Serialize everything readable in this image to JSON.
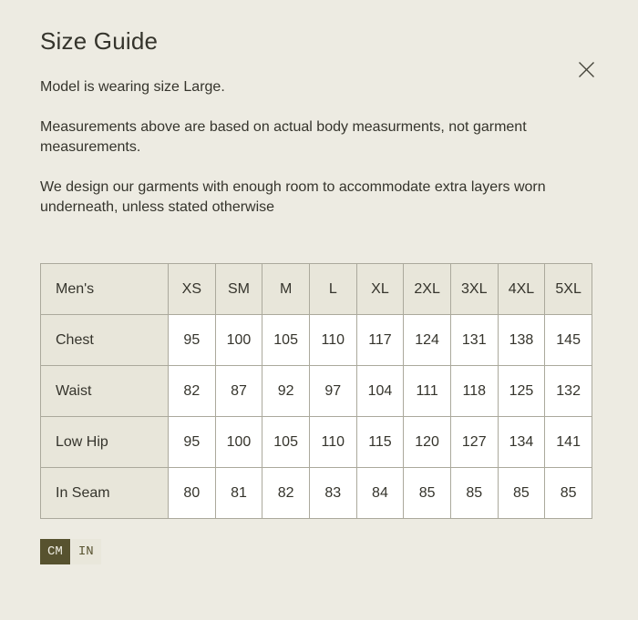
{
  "colors": {
    "page_bg": "#edebe2",
    "text": "#35342c",
    "table_border": "#aba99c",
    "label_cell_bg": "#e8e6da",
    "data_cell_bg": "#ffffff",
    "toggle_active_bg": "#57522f",
    "toggle_active_text": "#f0eee3",
    "toggle_inactive_bg": "#e9e7db",
    "toggle_inactive_text": "#57522f"
  },
  "modal": {
    "title": "Size Guide",
    "paragraphs": [
      "Model is wearing size Large.",
      "Measurements above are based on actual body measurments, not garment measurements.",
      "We design our garments with enough room to accommodate extra layers worn underneath, unless stated otherwise"
    ]
  },
  "size_table": {
    "header": [
      "Men's",
      "XS",
      "SM",
      "M",
      "L",
      "XL",
      "2XL",
      "3XL",
      "4XL",
      "5XL"
    ],
    "rows": [
      {
        "label": "Chest",
        "values": [
          "95",
          "100",
          "105",
          "110",
          "117",
          "124",
          "131",
          "138",
          "145"
        ]
      },
      {
        "label": "Waist",
        "values": [
          "82",
          "87",
          "92",
          "97",
          "104",
          "111",
          "118",
          "125",
          "132"
        ]
      },
      {
        "label": "Low Hip",
        "values": [
          "95",
          "100",
          "105",
          "110",
          "115",
          "120",
          "127",
          "134",
          "141"
        ]
      },
      {
        "label": "In Seam",
        "values": [
          "80",
          "81",
          "82",
          "83",
          "84",
          "85",
          "85",
          "85",
          "85"
        ]
      }
    ]
  },
  "unit_toggle": {
    "options": [
      {
        "label": "CM",
        "active": true
      },
      {
        "label": "IN",
        "active": false
      }
    ]
  }
}
